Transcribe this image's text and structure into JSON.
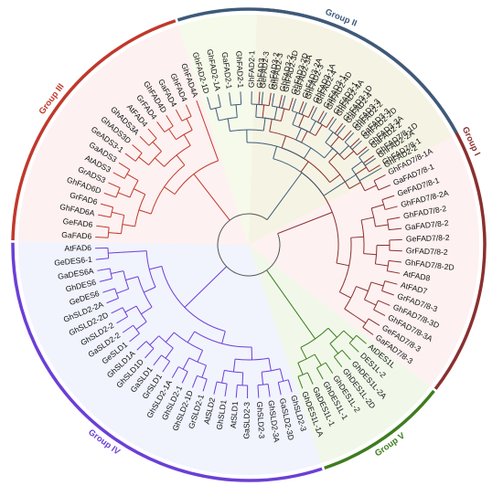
{
  "groups": [
    {
      "id": "group-1",
      "name": "Group I",
      "color": "#8b2f2f",
      "bg": "#fbe6e6",
      "leaves": [
        "GhFAD3",
        "GaFAD3-2",
        "GhFAD3-2",
        "GhFAD3-2D",
        "GhFAD3-2A",
        "GhFAD3-1A",
        "GaFAD3-1",
        "GhFAD3-1",
        "GhFAD3-1D",
        "GhFAD3-3",
        "GaFAD3-3",
        "GhFAD3-3A",
        "GhFAD7/8-1D",
        "GhFAD7/8-1",
        "GhFAD7/8-1A",
        "GaFAD7/8-1",
        "GeFAD7/8-1",
        "GhFAD7/8-2A",
        "GhFAD7/8-2",
        "GaFAD7/8-2",
        "GeFAD7/8-2",
        "GrFAD7/8-2",
        "GhFAD7/8-2D",
        "AtFAD8",
        "AtFAD7",
        "GrFAD7/8-3",
        "GhFAD7/8-3D",
        "GhFAD7/8-3A",
        "GeFAD7/8-3",
        "GaFAD7/8-3"
      ]
    },
    {
      "id": "group-5",
      "name": "Group V",
      "color": "#3e7d1e",
      "bg": "#e6f3d9",
      "leaves": [
        "AtDES1L",
        "DES1L-2",
        "GhDES1L-2A",
        "GhDES1L-2D",
        "GhDES1L-2",
        "GhDES1L-1",
        "GaDES1L-1",
        "GhDES1L-1A"
      ]
    },
    {
      "id": "group-4",
      "name": "Group IV",
      "color": "#6b3fd6",
      "bg": "#e6e9fb",
      "leaves": [
        "GhSLD2-3",
        "GaSLD2-3D",
        "GhSLD2-3A",
        "GhSLD2-3",
        "GaSLD2-3",
        "AtSLD1",
        "GhSLD1",
        "AtSLD2",
        "GrSLD2-1",
        "GhSLD2-1D",
        "GhSLD2-1",
        "GhSLD2-1A",
        "GrSLD1",
        "GaSLD1",
        "GhSLD1D",
        "GhSLD1A",
        "GeSLD1",
        "GaSLD2-2",
        "GhSLD2-2",
        "GhSLD2-2D",
        "GhSLD2-2A",
        "GeDES6",
        "GhDES6",
        "GaDES6A",
        "GeDES6-1",
        "AtFAD6"
      ]
    },
    {
      "id": "group-3",
      "name": "Group III",
      "color": "#c0392b",
      "bg": "#fbe6e6",
      "leaves": [
        "GaFAD6",
        "GeFAD6",
        "GhFAD6A",
        "GrFAD6",
        "GhFAD6D",
        "GrADS3",
        "AtADS3",
        "GaADS3",
        "GeADS3-1",
        "GhADS3D",
        "GhADS3A",
        "AtFAD4",
        "GrFAD4",
        "GhFAD4D",
        "GaFAD4",
        "GhFAD4",
        "GhFAD4A"
      ]
    },
    {
      "id": "group-2",
      "name": "Group II",
      "color": "#3d5a7a",
      "bg": "#eef6d9",
      "leaves": [
        "GhFAD2-1D",
        "GhFAD2-1A",
        "GaFAD2-1",
        "GhFAD2-1",
        "GhFAD2-1",
        "GeFAD2-3",
        "GhFAD2-3",
        "GhFAD2-3D",
        "GaFAD2-3A",
        "GhFAD2-3",
        "GhFAD2-4",
        "GhFAD2-4D",
        "GhFAD2-4A",
        "GaFAD2-4",
        "GhFAD2-2",
        "GhFAD2-2D",
        "GaFAD2-2",
        "GhFAD2-2A",
        "GhFAD2-2"
      ]
    }
  ]
}
